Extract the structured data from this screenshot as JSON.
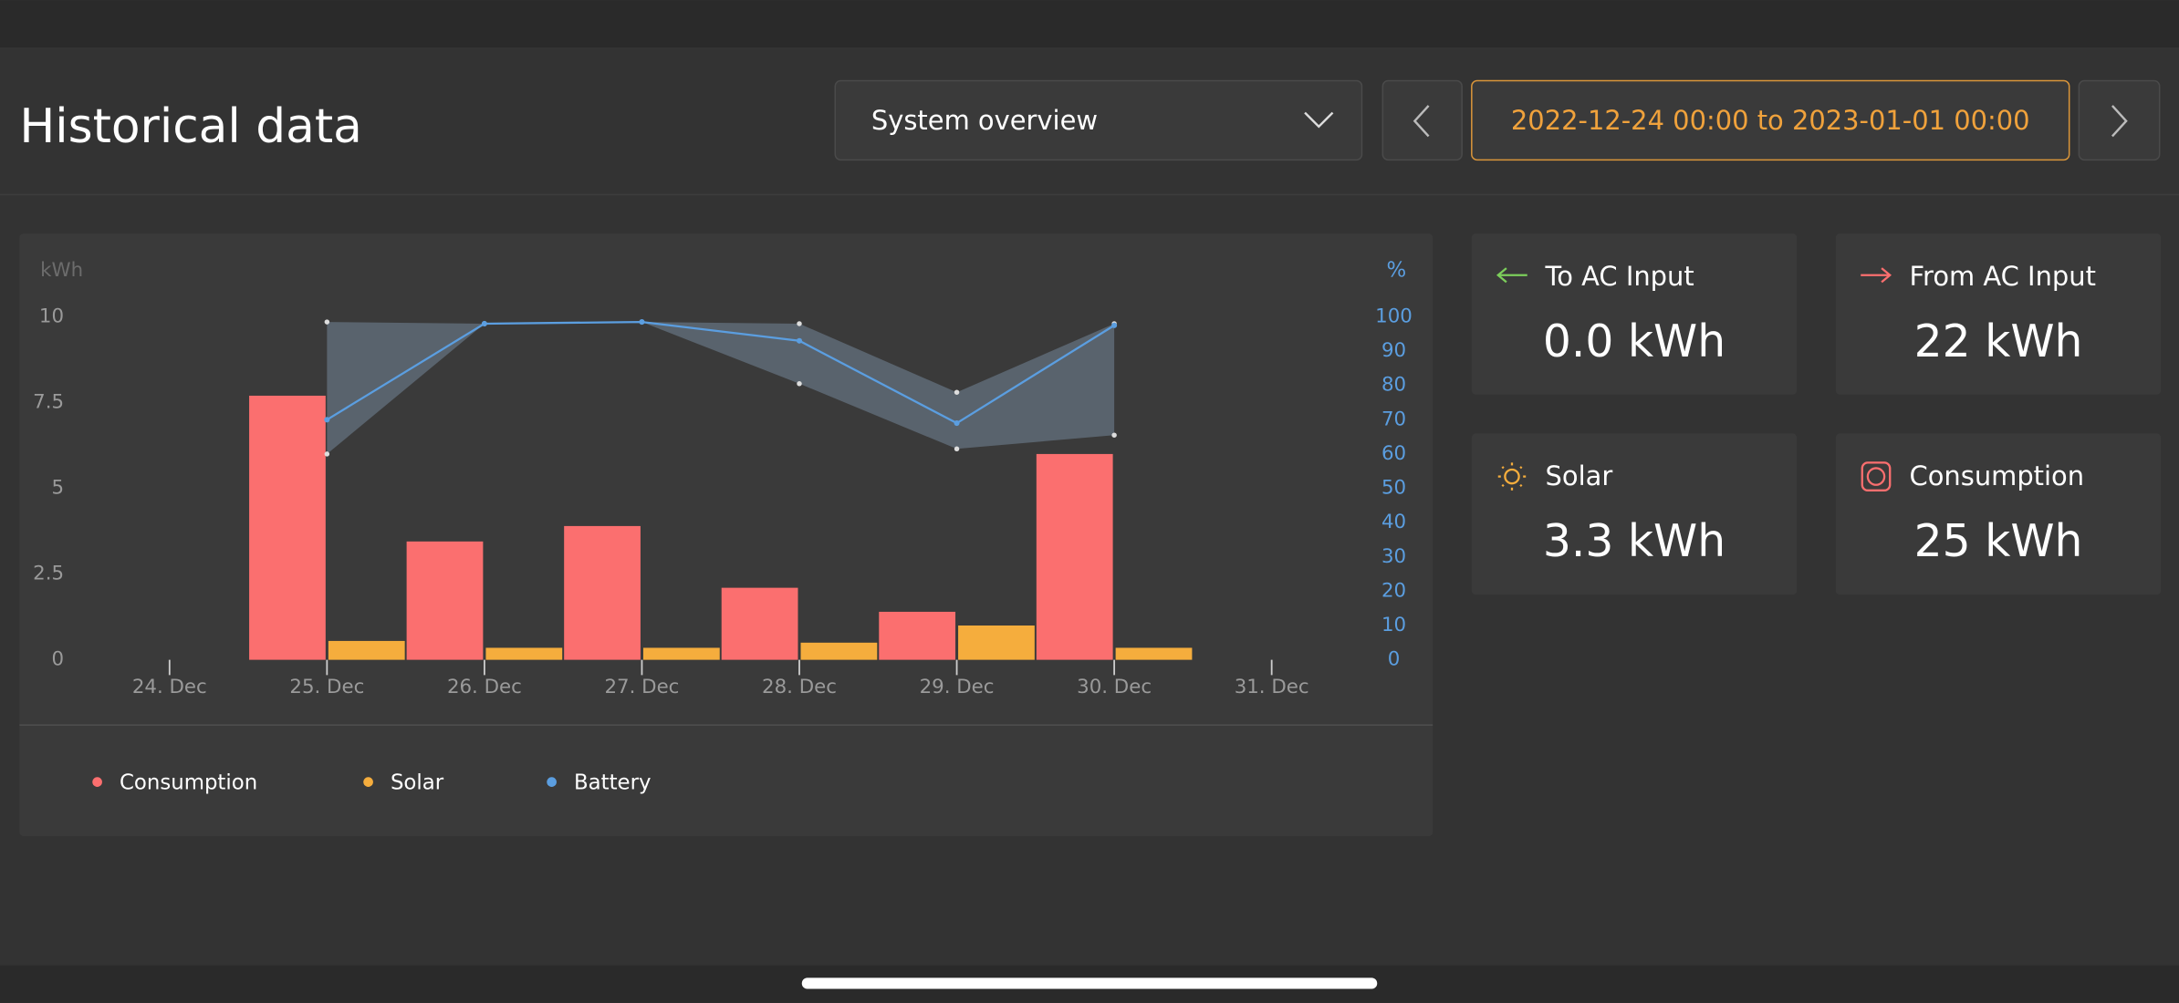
{
  "header": {
    "title": "Historical data",
    "dropdown": "System overview",
    "date_range": "2022-12-24 00:00 to 2023-01-01 00:00"
  },
  "chart_data": {
    "type": "bar",
    "ylabel": "kWh",
    "y2label": "%",
    "categories": [
      "24. Dec",
      "25. Dec",
      "26. Dec",
      "27. Dec",
      "28. Dec",
      "29. Dec",
      "30. Dec",
      "31. Dec"
    ],
    "series": [
      {
        "name": "Consumption",
        "color": "#fb6f6f",
        "values": [
          null,
          7.7,
          3.45,
          3.9,
          2.1,
          1.4,
          6.0,
          null
        ]
      },
      {
        "name": "Solar",
        "color": "#f5ad3d",
        "values": [
          null,
          0.55,
          0.35,
          0.35,
          0.5,
          1.0,
          0.35,
          null
        ]
      },
      {
        "name": "Battery",
        "color": "#5b9ee0",
        "axis": "y2",
        "type": "line",
        "values": [
          null,
          70,
          98,
          98.5,
          93,
          69,
          97.5,
          null
        ],
        "max": [
          null,
          98.5,
          98,
          98.5,
          98,
          78,
          98,
          null
        ],
        "min": [
          null,
          60,
          98,
          98.5,
          80.5,
          61.5,
          65.5,
          null
        ]
      }
    ],
    "ylim": [
      0,
      10
    ],
    "yticks": [
      0,
      2.5,
      5,
      7.5,
      10
    ],
    "y2lim": [
      0,
      100
    ],
    "y2ticks": [
      0,
      10,
      20,
      30,
      40,
      50,
      60,
      70,
      80,
      90,
      100
    ]
  },
  "cards": [
    {
      "title": "To AC Input",
      "value": "0.0 kWh"
    },
    {
      "title": "From AC Input",
      "value": "22 kWh"
    },
    {
      "title": "Solar",
      "value": "3.3 kWh"
    },
    {
      "title": "Consumption",
      "value": "25 kWh"
    }
  ]
}
